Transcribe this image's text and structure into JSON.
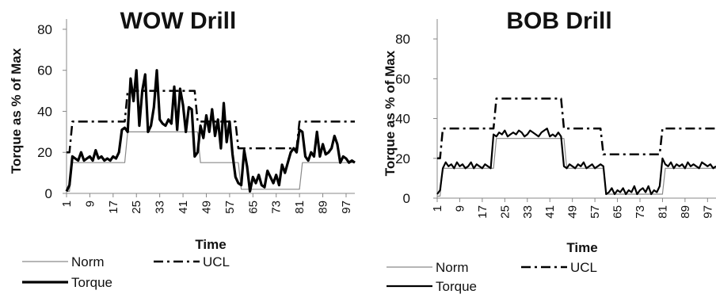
{
  "chart_data": [
    {
      "type": "line",
      "title": "WOW Drill",
      "xlabel": "Time",
      "ylabel": "Torque as % of Max",
      "ylim": [
        0,
        85
      ],
      "yticks": [
        0,
        20,
        40,
        60,
        80
      ],
      "xlim": [
        1,
        100
      ],
      "xticks": [
        1,
        9,
        17,
        25,
        33,
        41,
        49,
        57,
        65,
        73,
        81,
        89,
        97
      ],
      "grid": false,
      "legend_position": "bottom",
      "series": [
        {
          "name": "Norm",
          "style": "thin-gray",
          "color": "#8a8a8a",
          "x": [
            1,
            2,
            3,
            21,
            22,
            46,
            47,
            60,
            61,
            81,
            82,
            100
          ],
          "y": [
            1,
            1,
            15,
            15,
            30,
            30,
            15,
            15,
            2,
            2,
            15,
            15
          ]
        },
        {
          "name": "UCL",
          "style": "dash-dot",
          "color": "#000000",
          "x": [
            1,
            2,
            3,
            21,
            22,
            45,
            46,
            59,
            60,
            80,
            81,
            100
          ],
          "y": [
            20,
            20,
            35,
            35,
            50,
            50,
            35,
            35,
            22,
            22,
            35,
            35
          ]
        },
        {
          "name": "Torque",
          "style": "thick",
          "color": "#000000",
          "x": [
            1,
            2,
            3,
            4,
            5,
            6,
            7,
            8,
            9,
            10,
            11,
            12,
            13,
            14,
            15,
            16,
            17,
            18,
            19,
            20,
            21,
            22,
            23,
            24,
            25,
            26,
            27,
            28,
            29,
            30,
            31,
            32,
            33,
            34,
            35,
            36,
            37,
            38,
            39,
            40,
            41,
            42,
            43,
            44,
            45,
            46,
            47,
            48,
            49,
            50,
            51,
            52,
            53,
            54,
            55,
            56,
            57,
            58,
            59,
            60,
            61,
            62,
            63,
            64,
            65,
            66,
            67,
            68,
            69,
            70,
            71,
            72,
            73,
            74,
            75,
            76,
            77,
            78,
            79,
            80,
            81,
            82,
            83,
            84,
            85,
            86,
            87,
            88,
            89,
            90,
            91,
            92,
            93,
            94,
            95,
            96,
            97,
            98,
            99,
            100
          ],
          "y": [
            1,
            4,
            18,
            17,
            16,
            20,
            16,
            17,
            18,
            16,
            21,
            17,
            18,
            16,
            17,
            16,
            18,
            17,
            20,
            31,
            32,
            30,
            56,
            45,
            60,
            33,
            50,
            58,
            30,
            33,
            42,
            60,
            36,
            34,
            33,
            36,
            34,
            52,
            31,
            51,
            43,
            30,
            42,
            41,
            18,
            20,
            33,
            27,
            38,
            30,
            41,
            28,
            36,
            22,
            44,
            25,
            35,
            19,
            8,
            5,
            4,
            21,
            13,
            1,
            8,
            5,
            9,
            4,
            3,
            11,
            8,
            5,
            9,
            4,
            14,
            10,
            15,
            20,
            22,
            20,
            31,
            30,
            18,
            16,
            20,
            18,
            30,
            18,
            24,
            19,
            20,
            22,
            28,
            24,
            15,
            18,
            17,
            15,
            16,
            15
          ]
        }
      ]
    },
    {
      "type": "line",
      "title": "BOB Drill",
      "xlabel": "Time",
      "ylabel": "Torque as % of Max",
      "ylim": [
        0,
        90
      ],
      "yticks": [
        0,
        20,
        40,
        60,
        80
      ],
      "xlim": [
        1,
        100
      ],
      "xticks": [
        1,
        9,
        17,
        25,
        33,
        41,
        49,
        57,
        65,
        73,
        81,
        89,
        97
      ],
      "grid": false,
      "legend_position": "bottom",
      "series": [
        {
          "name": "Norm",
          "style": "thin-gray",
          "color": "#8a8a8a",
          "x": [
            1,
            2,
            3,
            21,
            22,
            46,
            47,
            60,
            61,
            81,
            82,
            100
          ],
          "y": [
            1,
            1,
            15,
            15,
            30,
            30,
            15,
            15,
            2,
            2,
            15,
            15
          ]
        },
        {
          "name": "UCL",
          "style": "dash-dot",
          "color": "#000000",
          "x": [
            1,
            2,
            3,
            21,
            22,
            45,
            46,
            59,
            60,
            80,
            81,
            100
          ],
          "y": [
            20,
            20,
            35,
            35,
            50,
            50,
            35,
            35,
            22,
            22,
            35,
            35
          ]
        },
        {
          "name": "Torque",
          "style": "medium",
          "color": "#000000",
          "x": [
            1,
            2,
            3,
            4,
            5,
            6,
            7,
            8,
            9,
            10,
            11,
            12,
            13,
            14,
            15,
            16,
            17,
            18,
            19,
            20,
            21,
            22,
            23,
            24,
            25,
            26,
            27,
            28,
            29,
            30,
            31,
            32,
            33,
            34,
            35,
            36,
            37,
            38,
            39,
            40,
            41,
            42,
            43,
            44,
            45,
            46,
            47,
            48,
            49,
            50,
            51,
            52,
            53,
            54,
            55,
            56,
            57,
            58,
            59,
            60,
            61,
            62,
            63,
            64,
            65,
            66,
            67,
            68,
            69,
            70,
            71,
            72,
            73,
            74,
            75,
            76,
            77,
            78,
            79,
            80,
            81,
            82,
            83,
            84,
            85,
            86,
            87,
            88,
            89,
            90,
            91,
            92,
            93,
            94,
            95,
            96,
            97,
            98,
            99,
            100
          ],
          "y": [
            2,
            4,
            15,
            18,
            16,
            17,
            15,
            18,
            16,
            17,
            15,
            16,
            18,
            15,
            17,
            16,
            15,
            17,
            16,
            15,
            32,
            31,
            33,
            32,
            34,
            31,
            32,
            33,
            32,
            34,
            33,
            31,
            32,
            34,
            33,
            32,
            31,
            33,
            34,
            35,
            31,
            32,
            31,
            33,
            31,
            16,
            15,
            17,
            16,
            15,
            17,
            16,
            18,
            15,
            16,
            17,
            15,
            16,
            17,
            16,
            2,
            3,
            5,
            2,
            4,
            3,
            5,
            2,
            4,
            3,
            6,
            2,
            4,
            5,
            3,
            6,
            2,
            4,
            3,
            6,
            20,
            17,
            16,
            18,
            15,
            17,
            16,
            17,
            15,
            18,
            16,
            17,
            16,
            15,
            18,
            17,
            16,
            17,
            15,
            16
          ]
        }
      ]
    }
  ]
}
